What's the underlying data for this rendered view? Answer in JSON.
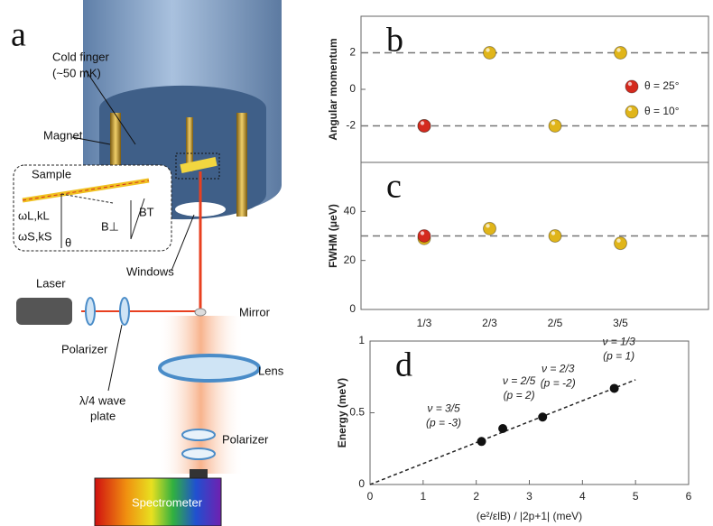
{
  "diagram": {
    "label": "a",
    "cold_finger": "Cold finger",
    "cold_finger_temp": "(~50 mK)",
    "magnet": "Magnet",
    "sample": "Sample",
    "windows": "Windows",
    "laser": "Laser",
    "mirror": "Mirror",
    "polarizer_top": "Polarizer",
    "lens": "Lens",
    "waveplate_1": "λ/4 wave",
    "waveplate_2": "plate",
    "polarizer_bottom": "Polarizer",
    "spectrometer": "Spectrometer",
    "incident": "ωL,kL",
    "scattered": "ωS,kS",
    "b_perp": "B⊥",
    "b_total": "BT",
    "theta": "θ"
  },
  "chart_data": [
    {
      "type": "dot",
      "label": "b",
      "ylabel": "Angular momentum",
      "ylim": [
        -4,
        4
      ],
      "yticks": [
        -2,
        0,
        2
      ],
      "reference_lines": [
        2,
        -2
      ],
      "legend": "right",
      "series": [
        {
          "name": "θ = 25°",
          "color": "#d42a1e",
          "values": [
            -2,
            null,
            null,
            null
          ]
        },
        {
          "name": "θ = 10°",
          "color": "#e0b51a",
          "values": [
            -2,
            2,
            -2,
            2
          ]
        }
      ]
    },
    {
      "type": "dot",
      "label": "c",
      "ylabel": "FWHM (μeV)",
      "ylim": [
        0,
        60
      ],
      "yticks": [
        0,
        20,
        40
      ],
      "reference_lines": [
        30
      ],
      "categories": [
        "1/3",
        "2/3",
        "2/5",
        "3/5"
      ],
      "series": [
        {
          "color": "#d42a1e",
          "values": [
            30,
            null,
            null,
            null
          ]
        },
        {
          "color": "#e0b51a",
          "values": [
            29,
            33,
            30,
            27
          ]
        }
      ]
    },
    {
      "type": "scatter",
      "label": "d",
      "xlabel": "(e²/εlB) / |2p+1| (meV)",
      "ylabel": "Energy (meV)",
      "xlim": [
        0,
        6
      ],
      "ylim": [
        0,
        1
      ],
      "xticks": [
        0,
        1,
        2,
        3,
        4,
        5,
        6
      ],
      "yticks": [
        0,
        0.5,
        1
      ],
      "color": "#111111",
      "x": [
        2.1,
        2.5,
        3.25,
        4.6
      ],
      "values": [
        0.3,
        0.39,
        0.47,
        0.67
      ],
      "xerr": [
        0.07,
        0.07,
        0.07,
        0.07
      ],
      "fit": {
        "x": [
          0,
          5
        ],
        "y": [
          0,
          0.73
        ]
      },
      "annotations": [
        {
          "text": "ν = 3/5",
          "sub": "(p = -3)"
        },
        {
          "text": "ν = 2/5",
          "sub": "(p = 2)"
        },
        {
          "text": "ν = 2/3",
          "sub": "(p = -2)"
        },
        {
          "text": "ν = 1/3",
          "sub": "(p = 1)"
        }
      ]
    }
  ]
}
